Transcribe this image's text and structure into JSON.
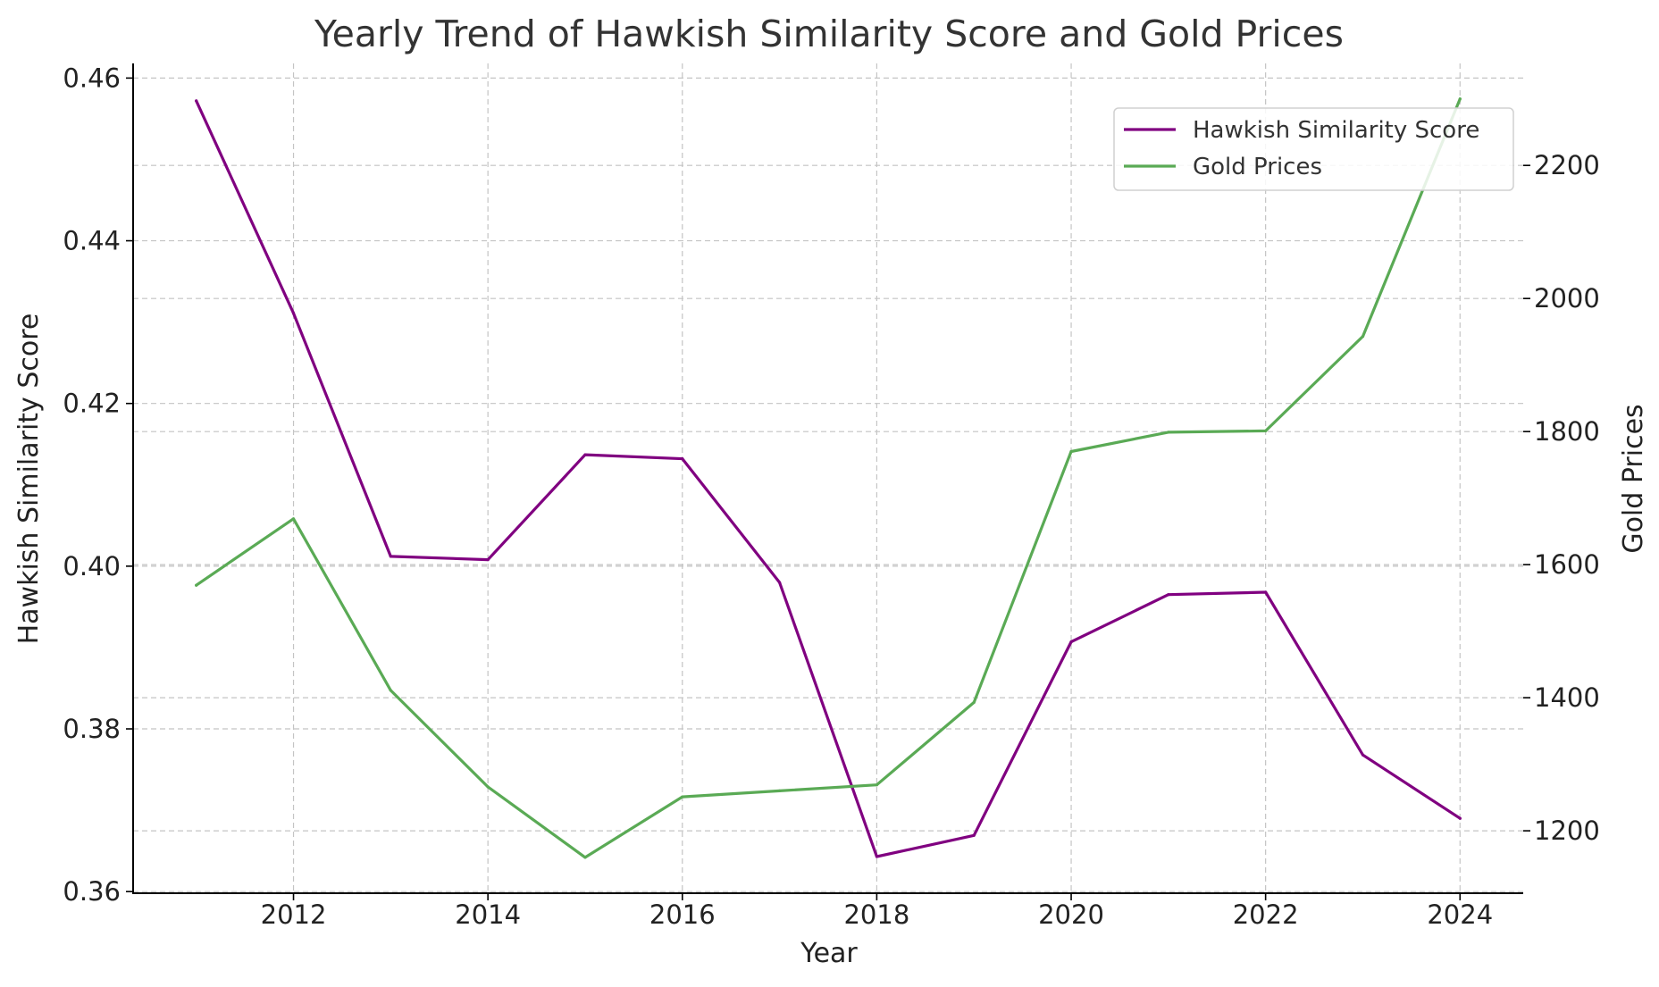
{
  "chart_data": {
    "type": "line",
    "title": "Yearly Trend of Hawkish Similarity Score and Gold Prices",
    "xlabel": "Year",
    "ylabel": "Hawkish Similarity Score",
    "y2label": "Gold Prices",
    "x": [
      2011,
      2012,
      2013,
      2014,
      2015,
      2016,
      2017,
      2018,
      2019,
      2020,
      2021,
      2022,
      2023,
      2024
    ],
    "xlim": [
      2010.35,
      2024.65
    ],
    "xticks": [
      2012,
      2014,
      2016,
      2018,
      2020,
      2022,
      2024
    ],
    "xtick_labels": [
      "2012",
      "2014",
      "2016",
      "2018",
      "2020",
      "2022",
      "2024"
    ],
    "ylim": [
      0.3598,
      0.4618
    ],
    "yticks": [
      0.36,
      0.38,
      0.4,
      0.42,
      0.44,
      0.46
    ],
    "ytick_labels": [
      "0.36",
      "0.38",
      "0.40",
      "0.42",
      "0.44",
      "0.46"
    ],
    "y2lim": [
      1106.2,
      2353.3
    ],
    "y2ticks": [
      1200,
      1400,
      1600,
      1800,
      2000,
      2200
    ],
    "y2tick_labels": [
      "1200",
      "1400",
      "1600",
      "1800",
      "2000",
      "2200"
    ],
    "grid": true,
    "legend_position": "top-right",
    "series": [
      {
        "name": "Hawkish Similarity Score",
        "axis": "left",
        "color": "#800080",
        "values": [
          0.4572,
          0.4311,
          0.4012,
          0.4008,
          0.4137,
          0.4132,
          0.398,
          0.3643,
          0.3669,
          0.3907,
          0.3965,
          0.3968,
          0.3768,
          0.369
        ]
      },
      {
        "name": "Gold Prices",
        "axis": "right",
        "color": "#5aaa55",
        "values": [
          1569,
          1669,
          1411,
          1266,
          1160,
          1251,
          1260,
          1269,
          1393,
          1770,
          1799,
          1801,
          1943,
          2300
        ]
      }
    ]
  }
}
